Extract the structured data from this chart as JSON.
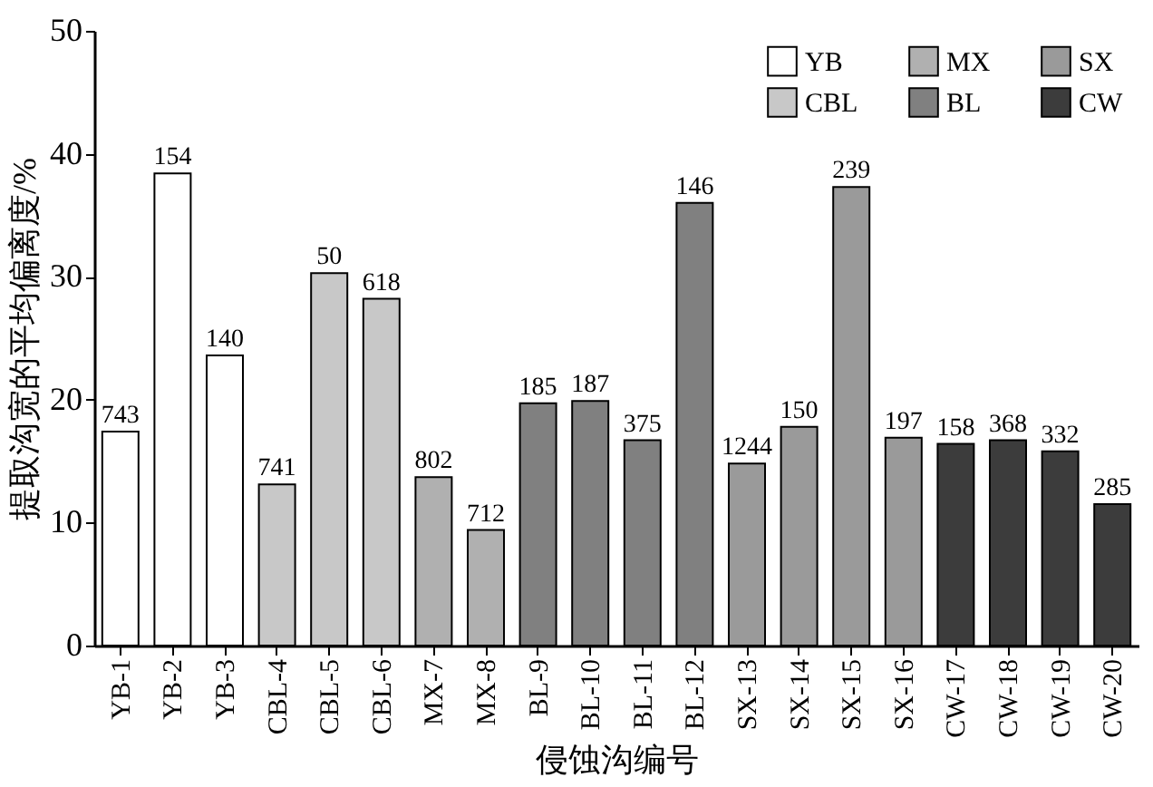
{
  "chart_data": {
    "type": "bar",
    "xlabel": "侵蚀沟编号",
    "ylabel": "提取沟宽的平均偏离度/%",
    "categories": [
      "YB-1",
      "YB-2",
      "YB-3",
      "CBL-4",
      "CBL-5",
      "CBL-6",
      "MX-7",
      "MX-8",
      "BL-9",
      "BL-10",
      "BL-11",
      "BL-12",
      "SX-13",
      "SX-14",
      "SX-15",
      "SX-16",
      "CW-17",
      "CW-18",
      "CW-19",
      "CW-20"
    ],
    "series": [
      {
        "name": "YB",
        "color": "#ffffff",
        "values": [
          17.4,
          38.4,
          23.6,
          null,
          null,
          null,
          null,
          null,
          null,
          null,
          null,
          null,
          null,
          null,
          null,
          null,
          null,
          null,
          null,
          null
        ]
      },
      {
        "name": "CBL",
        "color": "#c8c8c8",
        "values": [
          null,
          null,
          null,
          13.1,
          30.3,
          28.2,
          null,
          null,
          null,
          null,
          null,
          null,
          null,
          null,
          null,
          null,
          null,
          null,
          null,
          null
        ]
      },
      {
        "name": "MX",
        "color": "#b0b0b0",
        "values": [
          null,
          null,
          null,
          null,
          null,
          null,
          13.7,
          9.4,
          null,
          null,
          null,
          null,
          null,
          null,
          null,
          null,
          null,
          null,
          null,
          null
        ]
      },
      {
        "name": "BL",
        "color": "#808080",
        "values": [
          null,
          null,
          null,
          null,
          null,
          null,
          null,
          null,
          19.7,
          19.9,
          16.7,
          36.0,
          null,
          null,
          null,
          null,
          null,
          null,
          null,
          null
        ]
      },
      {
        "name": "SX",
        "color": "#9a9a9a",
        "values": [
          null,
          null,
          null,
          null,
          null,
          null,
          null,
          null,
          null,
          null,
          null,
          null,
          14.8,
          17.8,
          37.3,
          16.9,
          null,
          null,
          null,
          null
        ]
      },
      {
        "name": "CW",
        "color": "#3c3c3c",
        "values": [
          null,
          null,
          null,
          null,
          null,
          null,
          null,
          null,
          null,
          null,
          null,
          null,
          null,
          null,
          null,
          null,
          16.4,
          16.7,
          15.8,
          11.5
        ]
      }
    ],
    "annotations": [
      {
        "text": "743",
        "x": "YB-1",
        "y": 17.4
      },
      {
        "text": "154",
        "x": "YB-2",
        "y": 38.4
      },
      {
        "text": "140",
        "x": "YB-3",
        "y": 23.6
      },
      {
        "text": "741",
        "x": "CBL-4",
        "y": 13.1
      },
      {
        "text": "50",
        "x": "CBL-5",
        "y": 30.3
      },
      {
        "text": "618",
        "x": "CBL-6",
        "y": 28.2
      },
      {
        "text": "802",
        "x": "MX-7",
        "y": 13.7
      },
      {
        "text": "712",
        "x": "MX-8",
        "y": 9.4
      },
      {
        "text": "185",
        "x": "BL-9",
        "y": 19.7
      },
      {
        "text": "187",
        "x": "BL-10",
        "y": 19.9
      },
      {
        "text": "375",
        "x": "BL-11",
        "y": 16.7
      },
      {
        "text": "146",
        "x": "BL-12",
        "y": 36.0
      },
      {
        "text": "1244",
        "x": "SX-13",
        "y": 14.8
      },
      {
        "text": "150",
        "x": "SX-14",
        "y": 17.8
      },
      {
        "text": "239",
        "x": "SX-15",
        "y": 37.3
      },
      {
        "text": "197",
        "x": "SX-16",
        "y": 16.9
      },
      {
        "text": "158",
        "x": "CW-17",
        "y": 16.4
      },
      {
        "text": "368",
        "x": "CW-18",
        "y": 16.7
      },
      {
        "text": "332",
        "x": "CW-19",
        "y": 15.8
      },
      {
        "text": "285",
        "x": "CW-20",
        "y": 11.5
      }
    ],
    "ylim": [
      0,
      50
    ],
    "yticks": [
      0,
      10,
      20,
      30,
      40,
      50
    ],
    "grid": false,
    "legend": "top right"
  }
}
